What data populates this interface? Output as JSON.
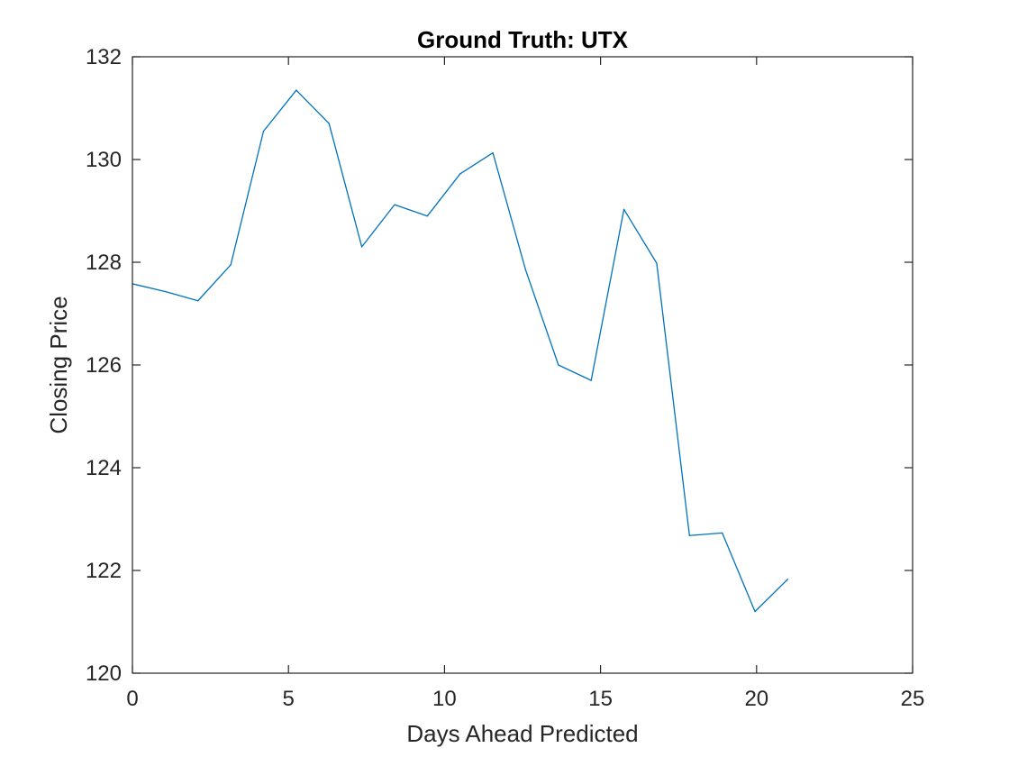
{
  "chart_data": {
    "type": "line",
    "title": "Ground Truth: UTX",
    "xlabel": "Days Ahead Predicted",
    "ylabel": "Closing Price",
    "xlim": [
      0,
      25
    ],
    "ylim": [
      120,
      132
    ],
    "xticks": [
      0,
      5,
      10,
      15,
      20,
      25
    ],
    "yticks": [
      120,
      122,
      124,
      126,
      128,
      130,
      132
    ],
    "grid": false,
    "line_color": "#0072BD",
    "series": [
      {
        "x": [
          0,
          1.05,
          2.1,
          3.15,
          4.2,
          5.25,
          6.3,
          7.35,
          8.4,
          9.45,
          10.5,
          11.55,
          12.6,
          13.65,
          14.7,
          15.75,
          16.8,
          17.85,
          18.9,
          19.95,
          21.0
        ],
        "y": [
          127.58,
          127.43,
          127.25,
          127.95,
          130.55,
          131.35,
          130.7,
          128.3,
          129.12,
          128.9,
          129.72,
          130.13,
          127.85,
          126.0,
          125.7,
          129.03,
          127.98,
          122.68,
          122.73,
          121.2,
          121.83
        ]
      }
    ]
  }
}
